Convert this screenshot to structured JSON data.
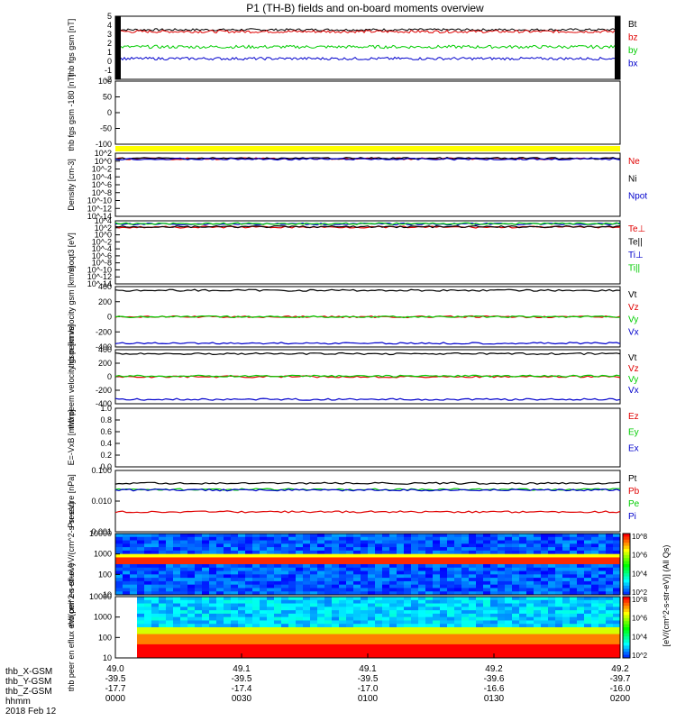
{
  "title": "P1 (TH-B) fields and on-board moments overview",
  "colors": {
    "black": "#000000",
    "red": "#e00000",
    "green": "#00cc00",
    "blue": "#0000cc",
    "yellow": "#ffff00"
  },
  "time_axis": {
    "start_hhmm": "0000",
    "end_hhmm": "0200",
    "ticks": [
      {
        "hhmm": "0000",
        "x_gsm": "49.0",
        "y_gsm": "-39.5",
        "z_gsm": "-17.7"
      },
      {
        "hhmm": "0030",
        "x_gsm": "49.1",
        "y_gsm": "-39.5",
        "z_gsm": "-17.4"
      },
      {
        "hhmm": "0100",
        "x_gsm": "49.1",
        "y_gsm": "-39.5",
        "z_gsm": "-17.0"
      },
      {
        "hhmm": "0130",
        "x_gsm": "49.2",
        "y_gsm": "-39.6",
        "z_gsm": "-16.6"
      },
      {
        "hhmm": "0200",
        "x_gsm": "49.2",
        "y_gsm": "-39.7",
        "z_gsm": "-16.0"
      }
    ],
    "row_labels": [
      "thb_X-GSM",
      "thb_Y-GSM",
      "thb_Z-GSM",
      "hhmm"
    ],
    "date": "2018 Feb 12"
  },
  "chart_data": [
    {
      "type": "line",
      "ylabel": "thb fgs gsm [nT]",
      "ylim": [
        -2,
        5
      ],
      "ticks": [
        "5",
        "4",
        "3",
        "2",
        "1",
        "0",
        "-1",
        "-2"
      ],
      "series": [
        {
          "name": "Bt",
          "color": "#000000",
          "base": 3.5,
          "amp": 0.25,
          "spike": 0.4
        },
        {
          "name": "bz",
          "color": "#e00000",
          "base": 3.3,
          "amp": 0.3,
          "spike": 0.8
        },
        {
          "name": "by",
          "color": "#00cc00",
          "base": 1.6,
          "amp": 0.35,
          "spike": 1.0
        },
        {
          "name": "bx",
          "color": "#0000cc",
          "base": 0.3,
          "amp": 0.3,
          "spike": 0.5
        }
      ]
    },
    {
      "type": "line",
      "ylabel": "thb fgs gsm -180 [nT]",
      "ylim": [
        -130,
        110
      ],
      "ticks": [
        "100",
        "50",
        "0",
        "-50",
        "-100"
      ],
      "series": []
    },
    {
      "type": "line",
      "ylabel": "Density [cm-3]",
      "log": true,
      "ylim": [
        -14,
        2
      ],
      "ticks": [
        "10^2",
        "10^0",
        "10^-2",
        "10^-4",
        "10^-6",
        "10^-8",
        "10^-10",
        "10^-12",
        "10^-14"
      ],
      "series": [
        {
          "name": "Ne",
          "color": "#e00000",
          "log_value": 0.6
        },
        {
          "name": "Ni",
          "color": "#000000",
          "log_value": 0.7
        },
        {
          "name": "Npot",
          "color": "#0000cc",
          "log_value": 0.5
        }
      ]
    },
    {
      "type": "line",
      "ylabel": "moqt3 [eV]",
      "log": true,
      "ylim": [
        -14,
        4
      ],
      "ticks": [
        "10^4",
        "10^2",
        "10^0",
        "10^-2",
        "10^-4",
        "10^-6",
        "10^-8",
        "10^-10",
        "10^-12",
        "10^-14"
      ],
      "series": [
        {
          "name": "Te⊥",
          "color": "#e00000",
          "log_value": 2.2
        },
        {
          "name": "Te||",
          "color": "#000000",
          "log_value": 2.3
        },
        {
          "name": "Ti⊥",
          "color": "#0000cc",
          "log_value": 3.1
        },
        {
          "name": "Ti||",
          "color": "#00cc00",
          "log_value": 3.2
        }
      ]
    },
    {
      "type": "line",
      "ylabel": "thb peim velocity gsm [km/s]",
      "ylim": [
        -400,
        400
      ],
      "ticks": [
        "400",
        "200",
        "0",
        "-200",
        "-400"
      ],
      "series": [
        {
          "name": "Vt",
          "color": "#000000",
          "value": 350
        },
        {
          "name": "Vz",
          "color": "#e00000",
          "value": 0
        },
        {
          "name": "Vy",
          "color": "#00cc00",
          "value": 0
        },
        {
          "name": "Vx",
          "color": "#0000cc",
          "value": -350
        }
      ]
    },
    {
      "type": "line",
      "ylabel": "thb peem velocity gsm [km/s]",
      "ylim": [
        -400,
        400
      ],
      "ticks": [
        "400",
        "200",
        "0",
        "-200",
        "-400"
      ],
      "series": [
        {
          "name": "Vt",
          "color": "#000000",
          "value": 340
        },
        {
          "name": "Vz",
          "color": "#e00000",
          "value": 0
        },
        {
          "name": "Vy",
          "color": "#00cc00",
          "value": 10
        },
        {
          "name": "Vx",
          "color": "#0000cc",
          "value": -335
        }
      ]
    },
    {
      "type": "line",
      "ylabel": "E=-VxB [mV/m]",
      "ylim": [
        0,
        1
      ],
      "ticks": [
        "1.0",
        "0.8",
        "0.6",
        "0.4",
        "0.2",
        "0.0"
      ],
      "series": [
        {
          "name": "Ez",
          "color": "#e00000"
        },
        {
          "name": "Ey",
          "color": "#00cc00"
        },
        {
          "name": "Ex",
          "color": "#0000cc"
        }
      ]
    },
    {
      "type": "line",
      "ylabel": "Pressure [nPa]",
      "log": true,
      "ylim": [
        -3,
        -1
      ],
      "ticks": [
        "0.100",
        "0.010",
        "0.001"
      ],
      "series": [
        {
          "name": "Pt",
          "color": "#000000",
          "log_value": -1.42
        },
        {
          "name": "Pb",
          "color": "#e00000",
          "log_value": -2.35
        },
        {
          "name": "Pe",
          "color": "#00cc00",
          "log_value": -1.62
        },
        {
          "name": "Pi",
          "color": "#0000cc",
          "log_value": -1.64
        }
      ]
    },
    {
      "type": "heatmap",
      "ylabel": "thb peir en eflux eV/(cm^2-s-sr-eV)",
      "log": true,
      "ylim": [
        5,
        25000
      ],
      "ticks": [
        "10000",
        "1000",
        "100",
        "10"
      ],
      "colorbar": [
        "10^8",
        "10^6",
        "10^4",
        "10^2"
      ]
    },
    {
      "type": "heatmap",
      "ylabel": "thb peer en eflux eV/(cm^2-s-sr-eV)",
      "log": true,
      "ylim": [
        5,
        25000
      ],
      "ticks": [
        "10000",
        "1000",
        "100",
        "10"
      ],
      "colorbar": [
        "10^8",
        "10^6",
        "10^4",
        "10^2"
      ]
    }
  ],
  "colorbar_title": "[eV/(cm^2-s-str-eV)] (All Qs)"
}
